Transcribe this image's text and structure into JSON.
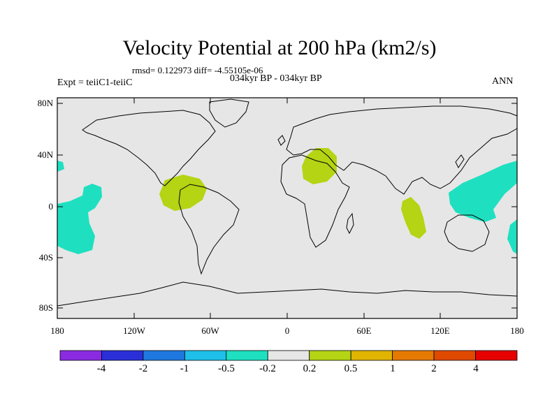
{
  "title": "Velocity Potential at 200 hPa (km2/s)",
  "stats": "rmsd= 0.122973 diff= -4.55105e-06",
  "period": "034kyr BP - 034kyr BP",
  "experiment": "Expt = teiiC1-teiiC",
  "season": "ANN",
  "lat_ticks": [
    "80N",
    "40N",
    "0",
    "40S",
    "80S"
  ],
  "lon_ticks": [
    "180",
    "120W",
    "60W",
    "0",
    "60E",
    "120E",
    "180"
  ],
  "colorbar": {
    "labels": [
      "-4",
      "-2",
      "-1",
      "-0.5",
      "-0.2",
      "0.2",
      "0.5",
      "1",
      "2",
      "4"
    ],
    "colors": [
      "#8a2be2",
      "#2a2fd8",
      "#1f78e0",
      "#1ec0ea",
      "#1ee0c0",
      "#e6e6e6",
      "#b4d414",
      "#e0b400",
      "#e67a00",
      "#e04a00",
      "#e60000"
    ]
  },
  "colors": {
    "ocean": "#e6e6e6",
    "positive_0.2_0.5": "#b4d414",
    "negative_-0.5_-0.2": "#1ee0c0"
  }
}
